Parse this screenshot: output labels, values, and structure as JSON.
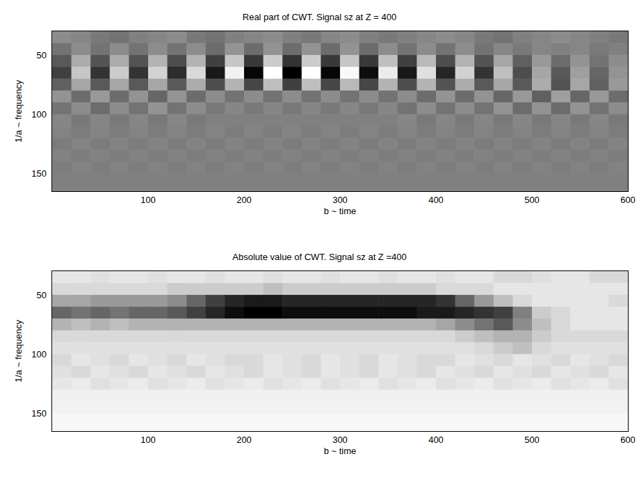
{
  "chart_data": [
    {
      "type": "heatmap",
      "title": "Real part of CWT. Signal sz at Z = 400",
      "x_label": "b ~ time",
      "y_label": "1/a ~ frequency",
      "xlim": [
        0,
        600
      ],
      "xticks": [
        100,
        200,
        300,
        400,
        500,
        600
      ],
      "ylim": [
        30,
        165
      ],
      "yticks": [
        50,
        100,
        150
      ],
      "zlim": [
        -1,
        1
      ],
      "colors": [
        "#000000",
        "#ffffff"
      ],
      "x": [
        10,
        30,
        50,
        70,
        90,
        110,
        130,
        150,
        170,
        190,
        210,
        230,
        250,
        270,
        290,
        310,
        330,
        350,
        370,
        390,
        410,
        430,
        450,
        470,
        490,
        510,
        530,
        550,
        570,
        590
      ],
      "y": [
        35,
        45,
        55,
        65,
        75,
        85,
        95,
        105,
        115,
        125,
        135,
        145,
        155,
        165
      ],
      "cells": [
        [
          0.1,
          0.05,
          -0.05,
          -0.1,
          0,
          0.05,
          0.1,
          -0.05,
          -0.1,
          0,
          0.05,
          0.1,
          0,
          -0.05,
          0.05,
          0.1,
          0,
          -0.05,
          0,
          0.05,
          0.1,
          0.05,
          -0.05,
          -0.1,
          0,
          0.05,
          0.1,
          0.05,
          0,
          -0.05
        ],
        [
          -0.1,
          0.1,
          -0.1,
          0.1,
          -0.1,
          0.1,
          -0.1,
          0.1,
          -0.15,
          0.15,
          -0.15,
          0.15,
          -0.15,
          0.15,
          -0.15,
          0.15,
          -0.15,
          0.1,
          -0.1,
          0.1,
          -0.1,
          0.1,
          -0.1,
          0.05,
          -0.05,
          0.05,
          0,
          0.05,
          -0.05,
          0
        ],
        [
          -0.3,
          0.35,
          -0.35,
          0.35,
          -0.35,
          0.4,
          -0.4,
          0.4,
          -0.5,
          0.55,
          -0.55,
          0.6,
          -0.6,
          0.6,
          -0.55,
          0.55,
          -0.55,
          0.5,
          -0.5,
          0.45,
          -0.4,
          0.4,
          -0.35,
          0.3,
          -0.25,
          0.2,
          -0.15,
          0.15,
          -0.1,
          0.1
        ],
        [
          -0.5,
          0.55,
          -0.6,
          0.6,
          -0.6,
          0.65,
          -0.65,
          0.7,
          -0.8,
          0.9,
          -0.95,
          1,
          -1,
          1,
          -0.95,
          0.95,
          -0.9,
          0.85,
          -0.8,
          0.75,
          -0.7,
          0.65,
          -0.6,
          0.5,
          -0.4,
          0.3,
          -0.3,
          0.25,
          -0.2,
          0.15
        ],
        [
          -0.25,
          0.3,
          -0.3,
          0.3,
          -0.3,
          0.3,
          -0.3,
          0.35,
          -0.4,
          0.4,
          -0.45,
          0.5,
          -0.5,
          0.5,
          -0.45,
          0.45,
          -0.45,
          0.4,
          -0.4,
          0.4,
          -0.35,
          0.35,
          -0.3,
          0.3,
          -0.3,
          0.35,
          -0.35,
          0.3,
          -0.25,
          0.2
        ],
        [
          0.15,
          -0.15,
          0.2,
          -0.15,
          0.15,
          -0.2,
          0.15,
          -0.15,
          0.1,
          -0.1,
          0.1,
          -0.1,
          0.1,
          -0.1,
          0.1,
          -0.1,
          0.1,
          -0.1,
          0.1,
          -0.15,
          0.15,
          -0.15,
          0.15,
          -0.2,
          0.2,
          -0.25,
          0.25,
          -0.2,
          0.2,
          -0.15
        ],
        [
          -0.1,
          0.1,
          -0.15,
          0.1,
          -0.1,
          0.15,
          -0.1,
          0.1,
          -0.05,
          0.05,
          -0.05,
          0.05,
          -0.05,
          0.05,
          -0.05,
          0.05,
          -0.05,
          0.05,
          -0.1,
          0.1,
          -0.1,
          0.1,
          -0.1,
          0.15,
          -0.15,
          0.15,
          -0.15,
          0.15,
          -0.1,
          0.1
        ],
        [
          0.05,
          -0.05,
          0.05,
          -0.05,
          0.05,
          -0.05,
          0.05,
          -0.05,
          0,
          0,
          0,
          0,
          0,
          0,
          0,
          0,
          0,
          0,
          0.05,
          -0.05,
          0.05,
          -0.05,
          0.05,
          -0.05,
          0.05,
          -0.05,
          0.05,
          -0.05,
          0.05,
          -0.05
        ],
        [
          0.03,
          -0.03,
          0.03,
          -0.03,
          0.03,
          -0.03,
          0.03,
          -0.03,
          0.03,
          -0.03,
          0.03,
          -0.03,
          0.03,
          -0.03,
          0.03,
          -0.03,
          0.03,
          -0.03,
          0.03,
          -0.03,
          0.03,
          -0.03,
          0.03,
          -0.03,
          0.03,
          -0.03,
          0.03,
          -0.03,
          0.03,
          -0.03
        ],
        [
          -0.03,
          0.03,
          -0.03,
          0.03,
          -0.03,
          0.03,
          -0.03,
          0.03,
          -0.03,
          0.03,
          -0.03,
          0.03,
          -0.03,
          0.03,
          -0.03,
          0.03,
          -0.03,
          0.03,
          -0.03,
          0.03,
          -0.03,
          0.03,
          -0.03,
          0.03,
          -0.03,
          0.03,
          -0.03,
          0.03,
          -0.03,
          0.03
        ],
        [
          0.02,
          -0.02,
          0.02,
          -0.02,
          0.02,
          -0.02,
          0.02,
          -0.02,
          0.02,
          -0.02,
          0.02,
          -0.02,
          0.02,
          -0.02,
          0.02,
          -0.02,
          0.02,
          -0.02,
          0.02,
          -0.02,
          0.02,
          -0.02,
          0.02,
          -0.02,
          0.02,
          -0.02,
          0.02,
          -0.02,
          0.02,
          -0.02
        ],
        [
          -0.02,
          0.02,
          -0.02,
          0.02,
          -0.02,
          0.02,
          -0.02,
          0.02,
          -0.02,
          0.02,
          -0.02,
          0.02,
          -0.02,
          0.02,
          -0.02,
          0.02,
          -0.02,
          0.02,
          -0.02,
          0.02,
          -0.02,
          0.02,
          -0.02,
          0.02,
          -0.02,
          0.02,
          -0.02,
          0.02,
          -0.02,
          0.02
        ],
        [
          0,
          0,
          0,
          0,
          0,
          0,
          0,
          0,
          0,
          0,
          0,
          0,
          0,
          0,
          0,
          0,
          0,
          0,
          0,
          0,
          0,
          0,
          0,
          0,
          0,
          0,
          0,
          0,
          0,
          0
        ],
        [
          0,
          0,
          0,
          0,
          0,
          0,
          0,
          0,
          0,
          0,
          0,
          0,
          0,
          0,
          0,
          0,
          0,
          0,
          0,
          0,
          0,
          0,
          0,
          0,
          0,
          0,
          0,
          0,
          0,
          0
        ]
      ]
    },
    {
      "type": "heatmap",
      "title": "Absolute value of CWT. Signal sz at Z =400",
      "x_label": "b ~ time",
      "y_label": "1/a ~ frequency",
      "xlim": [
        0,
        600
      ],
      "xticks": [
        100,
        200,
        300,
        400,
        500,
        600
      ],
      "ylim": [
        30,
        165
      ],
      "yticks": [
        50,
        100,
        150
      ],
      "zlim": [
        0,
        1
      ],
      "colors": [
        "#ffffff",
        "#000000"
      ],
      "x": [
        10,
        30,
        50,
        70,
        90,
        110,
        130,
        150,
        170,
        190,
        210,
        230,
        250,
        270,
        290,
        310,
        330,
        350,
        370,
        390,
        410,
        430,
        450,
        470,
        490,
        510,
        530,
        550,
        570,
        590
      ],
      "y": [
        35,
        45,
        55,
        65,
        75,
        85,
        95,
        105,
        115,
        125,
        135,
        145,
        155,
        165
      ],
      "cells": [
        [
          0.1,
          0.1,
          0.12,
          0.1,
          0.1,
          0.12,
          0.1,
          0.1,
          0.12,
          0.1,
          0.1,
          0.12,
          0.1,
          0.1,
          0.12,
          0.1,
          0.1,
          0.12,
          0.1,
          0.1,
          0.12,
          0.1,
          0.1,
          0.15,
          0.15,
          0.12,
          0.1,
          0.1,
          0.15,
          0.15
        ],
        [
          0.15,
          0.15,
          0.15,
          0.15,
          0.15,
          0.15,
          0.2,
          0.2,
          0.2,
          0.2,
          0.2,
          0.25,
          0.2,
          0.2,
          0.2,
          0.2,
          0.2,
          0.2,
          0.2,
          0.2,
          0.15,
          0.15,
          0.15,
          0.1,
          0.1,
          0.1,
          0.1,
          0.1,
          0.1,
          0.1
        ],
        [
          0.35,
          0.35,
          0.4,
          0.4,
          0.4,
          0.4,
          0.45,
          0.6,
          0.75,
          0.85,
          0.9,
          0.9,
          0.85,
          0.85,
          0.85,
          0.85,
          0.85,
          0.85,
          0.85,
          0.85,
          0.8,
          0.6,
          0.4,
          0.25,
          0.15,
          0.1,
          0.1,
          0.1,
          0.1,
          0.15
        ],
        [
          0.6,
          0.55,
          0.6,
          0.55,
          0.6,
          0.6,
          0.65,
          0.75,
          0.85,
          0.95,
          1,
          1,
          0.95,
          0.95,
          0.95,
          0.95,
          0.95,
          0.95,
          0.95,
          0.9,
          0.9,
          0.85,
          0.8,
          0.75,
          0.5,
          0.2,
          0.15,
          0.1,
          0.1,
          0.1
        ],
        [
          0.3,
          0.25,
          0.3,
          0.25,
          0.3,
          0.3,
          0.3,
          0.3,
          0.3,
          0.3,
          0.3,
          0.3,
          0.3,
          0.3,
          0.3,
          0.3,
          0.3,
          0.3,
          0.3,
          0.3,
          0.35,
          0.45,
          0.55,
          0.65,
          0.45,
          0.25,
          0.15,
          0.1,
          0.1,
          0.1
        ],
        [
          0.15,
          0.15,
          0.15,
          0.15,
          0.15,
          0.15,
          0.15,
          0.15,
          0.15,
          0.15,
          0.15,
          0.15,
          0.15,
          0.15,
          0.15,
          0.15,
          0.15,
          0.15,
          0.15,
          0.15,
          0.15,
          0.2,
          0.25,
          0.3,
          0.3,
          0.2,
          0.15,
          0.15,
          0.15,
          0.15
        ],
        [
          0.12,
          0.12,
          0.12,
          0.12,
          0.12,
          0.12,
          0.12,
          0.12,
          0.12,
          0.12,
          0.12,
          0.12,
          0.12,
          0.12,
          0.12,
          0.12,
          0.12,
          0.12,
          0.12,
          0.12,
          0.12,
          0.12,
          0.15,
          0.2,
          0.25,
          0.15,
          0.12,
          0.12,
          0.12,
          0.12
        ],
        [
          0.15,
          0.1,
          0.12,
          0.15,
          0.1,
          0.12,
          0.15,
          0.1,
          0.12,
          0.15,
          0.15,
          0.1,
          0.12,
          0.15,
          0.1,
          0.12,
          0.15,
          0.1,
          0.12,
          0.15,
          0.15,
          0.1,
          0.12,
          0.15,
          0.1,
          0.12,
          0.15,
          0.1,
          0.12,
          0.15
        ],
        [
          0.12,
          0.15,
          0.1,
          0.12,
          0.15,
          0.1,
          0.12,
          0.15,
          0.1,
          0.12,
          0.15,
          0.1,
          0.12,
          0.15,
          0.1,
          0.12,
          0.15,
          0.1,
          0.12,
          0.15,
          0.1,
          0.12,
          0.15,
          0.1,
          0.12,
          0.15,
          0.1,
          0.12,
          0.15,
          0.1
        ],
        [
          0.1,
          0.08,
          0.12,
          0.1,
          0.08,
          0.12,
          0.1,
          0.08,
          0.12,
          0.1,
          0.08,
          0.12,
          0.1,
          0.08,
          0.12,
          0.1,
          0.08,
          0.12,
          0.1,
          0.08,
          0.12,
          0.1,
          0.08,
          0.12,
          0.1,
          0.08,
          0.12,
          0.1,
          0.08,
          0.12
        ],
        [
          0.06,
          0.06,
          0.06,
          0.06,
          0.06,
          0.06,
          0.06,
          0.06,
          0.06,
          0.06,
          0.06,
          0.06,
          0.06,
          0.06,
          0.06,
          0.06,
          0.06,
          0.06,
          0.06,
          0.06,
          0.06,
          0.06,
          0.06,
          0.06,
          0.06,
          0.06,
          0.06,
          0.06,
          0.06,
          0.06
        ],
        [
          0.05,
          0.05,
          0.05,
          0.05,
          0.05,
          0.05,
          0.05,
          0.05,
          0.05,
          0.05,
          0.05,
          0.05,
          0.05,
          0.05,
          0.05,
          0.05,
          0.05,
          0.05,
          0.05,
          0.05,
          0.05,
          0.05,
          0.05,
          0.05,
          0.05,
          0.05,
          0.05,
          0.05,
          0.05,
          0.05
        ],
        [
          0.03,
          0.03,
          0.03,
          0.03,
          0.03,
          0.03,
          0.03,
          0.03,
          0.03,
          0.03,
          0.03,
          0.03,
          0.03,
          0.03,
          0.03,
          0.03,
          0.03,
          0.03,
          0.03,
          0.03,
          0.03,
          0.03,
          0.03,
          0.03,
          0.03,
          0.03,
          0.03,
          0.03,
          0.03,
          0.03
        ],
        [
          0.03,
          0.03,
          0.03,
          0.03,
          0.03,
          0.03,
          0.03,
          0.03,
          0.03,
          0.03,
          0.03,
          0.03,
          0.03,
          0.03,
          0.03,
          0.03,
          0.03,
          0.03,
          0.03,
          0.03,
          0.03,
          0.03,
          0.03,
          0.03,
          0.03,
          0.03,
          0.03,
          0.03,
          0.03,
          0.03
        ]
      ]
    }
  ]
}
